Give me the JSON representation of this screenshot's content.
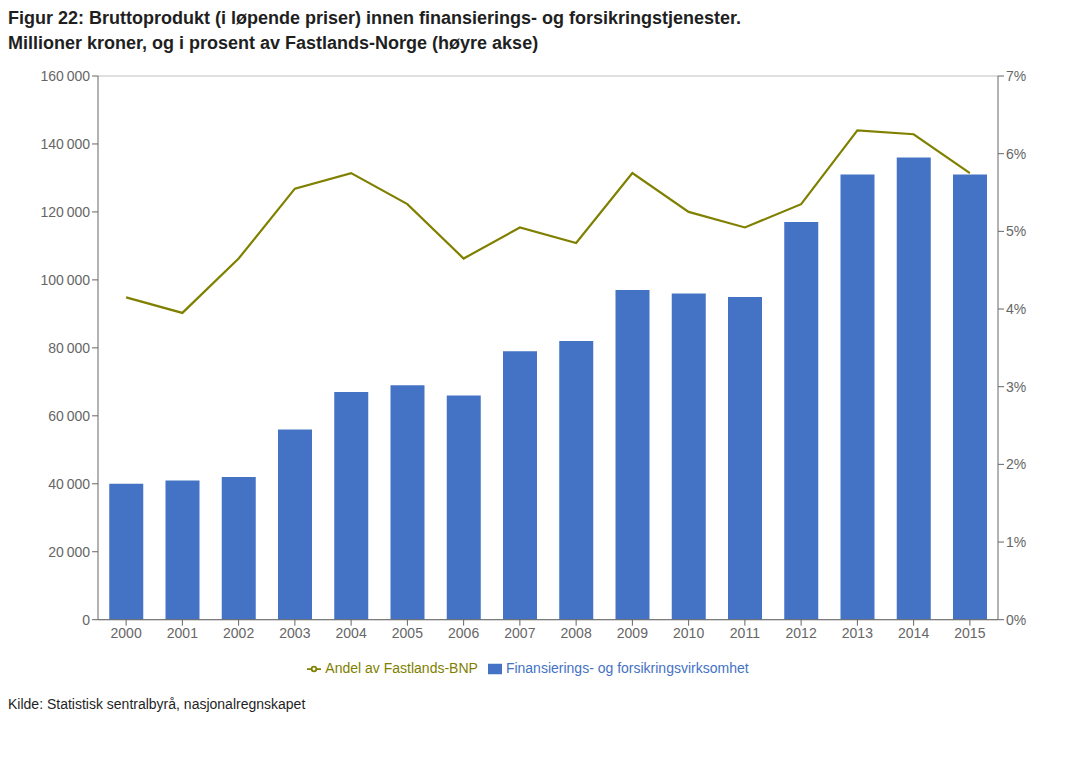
{
  "chart_data": {
    "type": "bar",
    "title": "Figur 22: Bruttoprodukt (i løpende priser) innen finansierings- og forsikringstjenester.",
    "subtitle": "Millioner kroner, og i prosent av Fastlands-Norge (høyre akse)",
    "annotations": [
      "Kilde: Statistisk sentralbyrå, nasjonalregnskapet"
    ],
    "categories": [
      "2000",
      "2001",
      "2002",
      "2003",
      "2004",
      "2005",
      "2006",
      "2007",
      "2008",
      "2009",
      "2010",
      "2011",
      "2012",
      "2013",
      "2014",
      "2015"
    ],
    "series": [
      {
        "name": "Finansierings- og forsikringsvirksomhet",
        "type": "bar",
        "color": "#4472C4",
        "values": [
          40000,
          41000,
          42000,
          56000,
          67000,
          69000,
          66000,
          79000,
          82000,
          97000,
          96000,
          95000,
          117000,
          131000,
          136000,
          131000
        ]
      },
      {
        "name": "Andel av Fastlands-BNP",
        "type": "line",
        "axis": "y2",
        "color": "#808000",
        "values": [
          4.15,
          3.95,
          4.65,
          5.55,
          5.75,
          5.35,
          4.65,
          5.05,
          4.85,
          5.75,
          5.25,
          5.05,
          5.35,
          6.3,
          6.25,
          5.75
        ]
      }
    ],
    "ylim": [
      0,
      160000
    ],
    "yticks": [
      0,
      {
        "value": 20000,
        "label": "20 000"
      },
      {
        "value": 40000,
        "label": "40 000"
      },
      {
        "value": 60000,
        "label": "60 000"
      },
      {
        "value": 80000,
        "label": "80 000"
      },
      {
        "value": 100000,
        "label": "100 000"
      },
      {
        "value": 120000,
        "label": "120 000"
      },
      {
        "value": 140000,
        "label": "140 000"
      },
      {
        "value": 160000,
        "label": "160 000"
      }
    ],
    "y2lim": [
      0,
      7
    ],
    "y2ticks": [
      {
        "value": 0,
        "label": "0%"
      },
      {
        "value": 1,
        "label": "1%"
      },
      {
        "value": 2,
        "label": "2%"
      },
      {
        "value": 3,
        "label": "3%"
      },
      {
        "value": 4,
        "label": "4%"
      },
      {
        "value": 5,
        "label": "5%"
      },
      {
        "value": 6,
        "label": "6%"
      },
      {
        "value": 7,
        "label": "7%"
      }
    ],
    "grid": true,
    "legend": "bottom"
  }
}
